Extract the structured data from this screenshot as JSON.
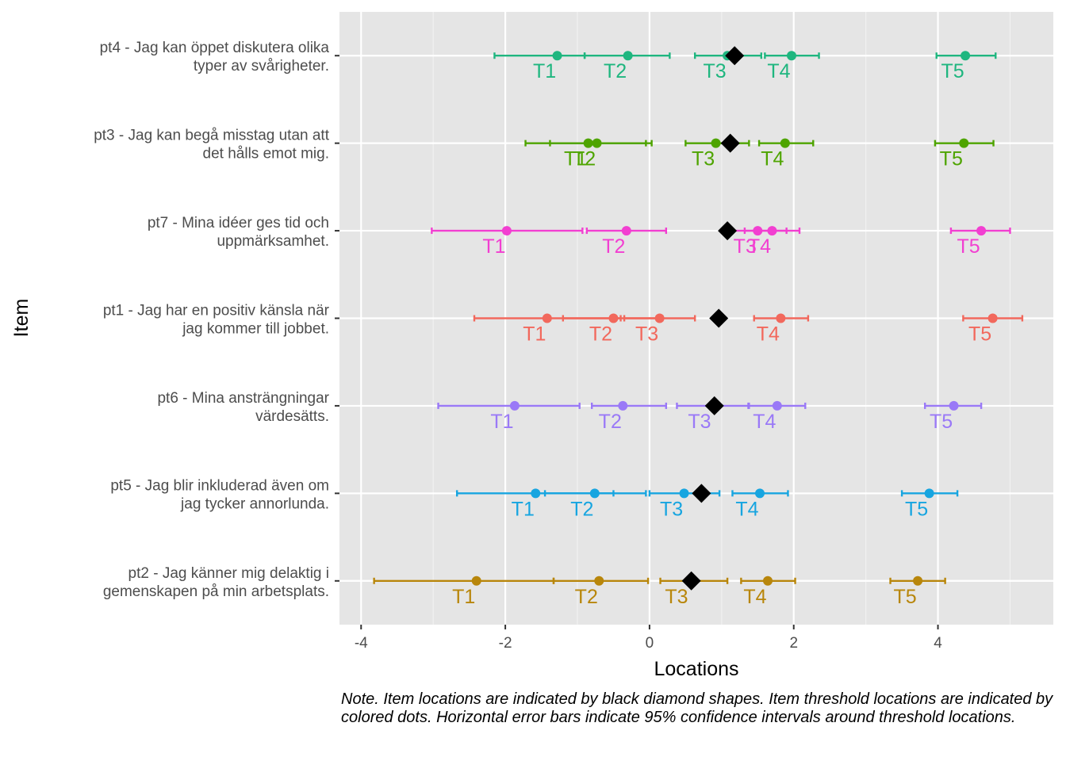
{
  "chart_data": {
    "type": "scatter",
    "xlabel": "Locations",
    "ylabel": "Item",
    "xlim": [
      -4.3,
      5.6
    ],
    "xticks": [
      -4,
      -2,
      0,
      2,
      4
    ],
    "grid": true,
    "note": "Note. Item locations are indicated by black diamond shapes. Item threshold locations are indicated by colored dots. Horizontal error bars indicate 95% confidence intervals around threshold locations.",
    "items": [
      {
        "label": "pt4 - Jag kan öppet diskutera olika\ntyper av svårigheter.",
        "color": "#1fb67f",
        "location": 1.18,
        "thresholds": [
          {
            "name": "T1",
            "value": -1.28,
            "lo": -2.15,
            "hi": -0.9
          },
          {
            "name": "T2",
            "value": -0.3,
            "lo": -0.9,
            "hi": 0.28
          },
          {
            "name": "T3",
            "value": 1.08,
            "lo": 0.63,
            "hi": 1.55
          },
          {
            "name": "T4",
            "value": 1.97,
            "lo": 1.6,
            "hi": 2.35
          },
          {
            "name": "T5",
            "value": 4.38,
            "lo": 3.98,
            "hi": 4.8
          }
        ]
      },
      {
        "label": "pt3 - Jag kan begå misstag utan att\ndet hålls emot mig.",
        "color": "#4ea400",
        "location": 1.12,
        "thresholds": [
          {
            "name": "T1",
            "value": -0.85,
            "lo": -1.72,
            "hi": -0.05
          },
          {
            "name": "T2",
            "value": -0.73,
            "lo": -1.38,
            "hi": 0.03
          },
          {
            "name": "T3",
            "value": 0.92,
            "lo": 0.5,
            "hi": 1.38
          },
          {
            "name": "T4",
            "value": 1.88,
            "lo": 1.52,
            "hi": 2.27
          },
          {
            "name": "T5",
            "value": 4.36,
            "lo": 3.96,
            "hi": 4.77
          }
        ]
      },
      {
        "label": "pt7 - Mina idéer ges tid och\nuppmärksamhet.",
        "color": "#f23fd1",
        "location": 1.08,
        "thresholds": [
          {
            "name": "T1",
            "value": -1.98,
            "lo": -3.02,
            "hi": -0.93
          },
          {
            "name": "T2",
            "value": -0.32,
            "lo": -0.87,
            "hi": 0.23
          },
          {
            "name": "T3",
            "value": 1.5,
            "lo": 1.12,
            "hi": 1.9
          },
          {
            "name": "T4",
            "value": 1.7,
            "lo": 1.32,
            "hi": 2.08
          },
          {
            "name": "T5",
            "value": 4.6,
            "lo": 4.18,
            "hi": 5.0
          }
        ]
      },
      {
        "label": "pt1 - Jag har en positiv känsla när\njag kommer till jobbet.",
        "color": "#f2685c",
        "location": 0.96,
        "thresholds": [
          {
            "name": "T1",
            "value": -1.42,
            "lo": -2.43,
            "hi": -0.4
          },
          {
            "name": "T2",
            "value": -0.5,
            "lo": -1.2,
            "hi": 0.18
          },
          {
            "name": "T3",
            "value": 0.14,
            "lo": -0.35,
            "hi": 0.63
          },
          {
            "name": "T4",
            "value": 1.82,
            "lo": 1.45,
            "hi": 2.2
          },
          {
            "name": "T5",
            "value": 4.76,
            "lo": 4.35,
            "hi": 5.17
          }
        ]
      },
      {
        "label": "pt6 - Mina ansträngningar\nvärdesätts.",
        "color": "#9a79f7",
        "location": 0.9,
        "thresholds": [
          {
            "name": "T1",
            "value": -1.87,
            "lo": -2.93,
            "hi": -0.97
          },
          {
            "name": "T2",
            "value": -0.37,
            "lo": -0.8,
            "hi": 0.23
          },
          {
            "name": "T3",
            "value": 0.87,
            "lo": 0.38,
            "hi": 1.37
          },
          {
            "name": "T4",
            "value": 1.77,
            "lo": 1.38,
            "hi": 2.16
          },
          {
            "name": "T5",
            "value": 4.22,
            "lo": 3.82,
            "hi": 4.6
          }
        ]
      },
      {
        "label": "pt5 - Jag blir inkluderad även om\njag tycker annorlunda.",
        "color": "#17a5e0",
        "location": 0.72,
        "thresholds": [
          {
            "name": "T1",
            "value": -1.58,
            "lo": -2.67,
            "hi": -0.5
          },
          {
            "name": "T2",
            "value": -0.76,
            "lo": -1.45,
            "hi": -0.05
          },
          {
            "name": "T3",
            "value": 0.48,
            "lo": 0.0,
            "hi": 0.97
          },
          {
            "name": "T4",
            "value": 1.53,
            "lo": 1.15,
            "hi": 1.92
          },
          {
            "name": "T5",
            "value": 3.88,
            "lo": 3.5,
            "hi": 4.27
          }
        ]
      },
      {
        "label": "pt2 - Jag känner mig delaktig i\ngemenskapen på min arbetsplats.",
        "color": "#b8860b",
        "location": 0.58,
        "thresholds": [
          {
            "name": "T1",
            "value": -2.4,
            "lo": -3.82,
            "hi": -1.33
          },
          {
            "name": "T2",
            "value": -0.7,
            "lo": -1.33,
            "hi": -0.02
          },
          {
            "name": "T3",
            "value": 0.55,
            "lo": 0.15,
            "hi": 1.08
          },
          {
            "name": "T4",
            "value": 1.64,
            "lo": 1.27,
            "hi": 2.02
          },
          {
            "name": "T5",
            "value": 3.72,
            "lo": 3.34,
            "hi": 4.1
          }
        ]
      }
    ]
  }
}
